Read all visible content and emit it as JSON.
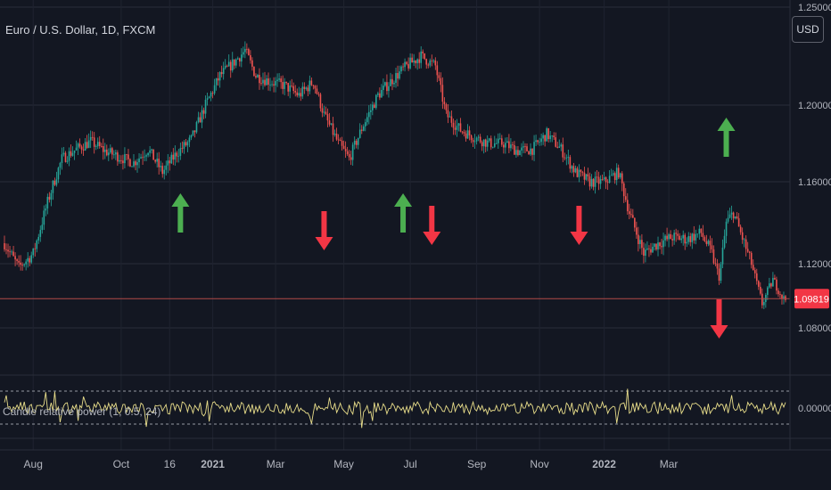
{
  "header": {
    "symbol_title": "Euro / U.S. Dollar, 1D, FXCM",
    "currency_button": "USD"
  },
  "indicator": {
    "label": "Candle relative power (1, 0.5, 24)",
    "zero_label": "0.00000"
  },
  "price_badge": {
    "label": "1.09819",
    "color": "#f23645"
  },
  "colors": {
    "background": "#131722",
    "up_candle": "#26a69a",
    "down_candle": "#ef5350",
    "up_arrow": "#4caf50",
    "down_arrow": "#f23645",
    "indicator_line": "#e8dd8a",
    "price_line": "#b24a48"
  },
  "chart_data": {
    "type": "candlestick",
    "title": "Euro / U.S. Dollar, 1D, FXCM",
    "y_ticks": [
      "1.25000",
      "1.20000",
      "1.16000",
      "1.12000",
      "1.08000"
    ],
    "y_tick_values": [
      1.25,
      1.2,
      1.16,
      1.12,
      1.08
    ],
    "x_ticks": [
      "Aug",
      "Oct",
      "16",
      "2021",
      "Mar",
      "May",
      "Jul",
      "Sep",
      "Nov",
      "2022",
      "Mar"
    ],
    "x_tick_bold": [
      false,
      false,
      false,
      true,
      false,
      false,
      false,
      false,
      false,
      true,
      false
    ],
    "last_price": 1.09819,
    "ylim": [
      1.075,
      1.25
    ],
    "price_path": [
      {
        "bar": 0,
        "price": 1.13
      },
      {
        "bar": 8,
        "price": 1.118
      },
      {
        "bar": 16,
        "price": 1.125
      },
      {
        "bar": 24,
        "price": 1.15
      },
      {
        "bar": 32,
        "price": 1.172
      },
      {
        "bar": 40,
        "price": 1.177
      },
      {
        "bar": 48,
        "price": 1.181
      },
      {
        "bar": 56,
        "price": 1.176
      },
      {
        "bar": 64,
        "price": 1.173
      },
      {
        "bar": 72,
        "price": 1.17
      },
      {
        "bar": 80,
        "price": 1.177
      },
      {
        "bar": 88,
        "price": 1.165
      },
      {
        "bar": 96,
        "price": 1.175
      },
      {
        "bar": 104,
        "price": 1.182
      },
      {
        "bar": 112,
        "price": 1.2
      },
      {
        "bar": 120,
        "price": 1.215
      },
      {
        "bar": 128,
        "price": 1.222
      },
      {
        "bar": 134,
        "price": 1.228
      },
      {
        "bar": 140,
        "price": 1.215
      },
      {
        "bar": 148,
        "price": 1.212
      },
      {
        "bar": 156,
        "price": 1.21
      },
      {
        "bar": 164,
        "price": 1.205
      },
      {
        "bar": 172,
        "price": 1.212
      },
      {
        "bar": 178,
        "price": 1.195
      },
      {
        "bar": 186,
        "price": 1.18
      },
      {
        "bar": 192,
        "price": 1.172
      },
      {
        "bar": 200,
        "price": 1.19
      },
      {
        "bar": 208,
        "price": 1.205
      },
      {
        "bar": 216,
        "price": 1.213
      },
      {
        "bar": 224,
        "price": 1.22
      },
      {
        "bar": 232,
        "price": 1.225
      },
      {
        "bar": 240,
        "price": 1.22
      },
      {
        "bar": 246,
        "price": 1.195
      },
      {
        "bar": 254,
        "price": 1.187
      },
      {
        "bar": 262,
        "price": 1.183
      },
      {
        "bar": 270,
        "price": 1.18
      },
      {
        "bar": 278,
        "price": 1.18
      },
      {
        "bar": 286,
        "price": 1.176
      },
      {
        "bar": 294,
        "price": 1.177
      },
      {
        "bar": 302,
        "price": 1.185
      },
      {
        "bar": 310,
        "price": 1.177
      },
      {
        "bar": 318,
        "price": 1.165
      },
      {
        "bar": 326,
        "price": 1.16
      },
      {
        "bar": 334,
        "price": 1.16
      },
      {
        "bar": 342,
        "price": 1.165
      },
      {
        "bar": 348,
        "price": 1.145
      },
      {
        "bar": 356,
        "price": 1.125
      },
      {
        "bar": 364,
        "price": 1.13
      },
      {
        "bar": 372,
        "price": 1.133
      },
      {
        "bar": 380,
        "price": 1.132
      },
      {
        "bar": 388,
        "price": 1.135
      },
      {
        "bar": 394,
        "price": 1.125
      },
      {
        "bar": 398,
        "price": 1.112
      },
      {
        "bar": 402,
        "price": 1.14
      },
      {
        "bar": 406,
        "price": 1.145
      },
      {
        "bar": 410,
        "price": 1.135
      },
      {
        "bar": 416,
        "price": 1.12
      },
      {
        "bar": 422,
        "price": 1.095
      },
      {
        "bar": 428,
        "price": 1.11
      },
      {
        "bar": 434,
        "price": 1.098
      }
    ],
    "signals": [
      {
        "bar": 98,
        "type": "up"
      },
      {
        "bar": 178,
        "type": "down"
      },
      {
        "bar": 222,
        "type": "up"
      },
      {
        "bar": 238,
        "type": "down"
      },
      {
        "bar": 320,
        "type": "down"
      },
      {
        "bar": 402,
        "type": "up"
      },
      {
        "bar": 398,
        "type": "down"
      }
    ]
  }
}
